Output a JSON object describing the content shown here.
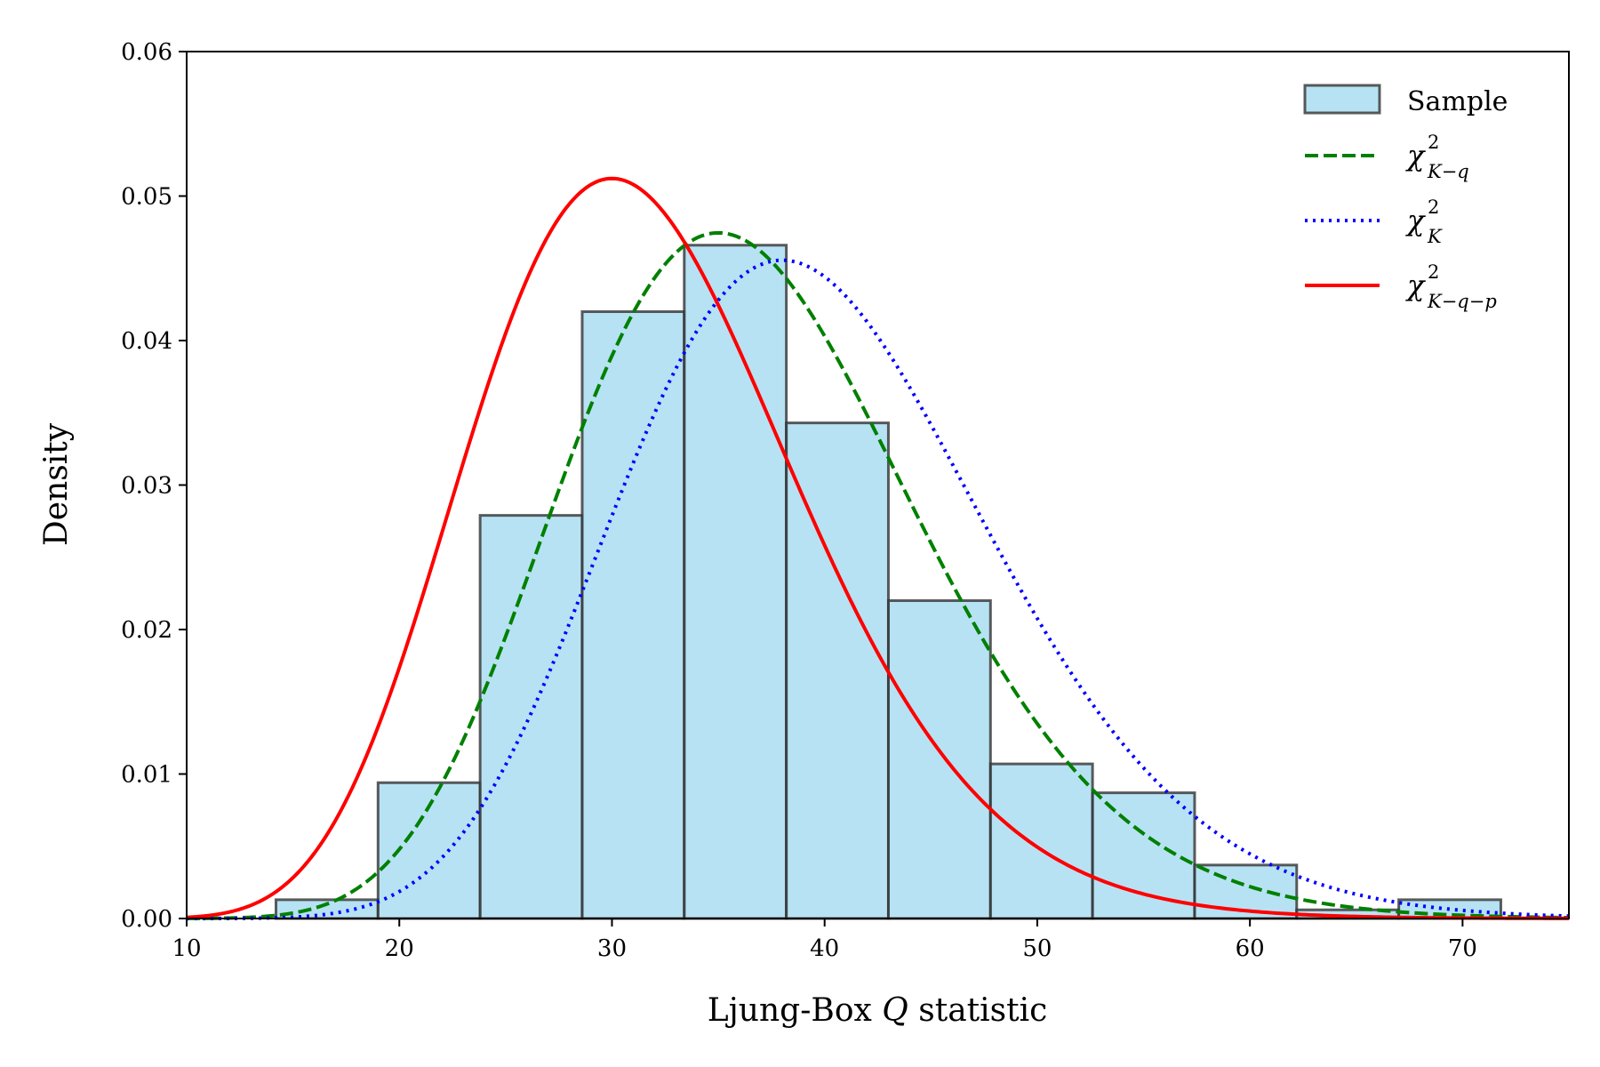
{
  "chart_data": {
    "type": "histogram",
    "xlabel_prefix": "Ljung-Box",
    "xlabel_var": "Q",
    "xlabel_suffix": "statistic",
    "ylabel": "Density",
    "xlim": [
      10,
      75
    ],
    "ylim": [
      0,
      0.06
    ],
    "xticks": [
      10,
      20,
      30,
      40,
      50,
      60,
      70
    ],
    "yticks": [
      0.0,
      0.01,
      0.02,
      0.03,
      0.04,
      0.05,
      0.06
    ],
    "ytick_labels": [
      "0.00",
      "0.01",
      "0.02",
      "0.03",
      "0.04",
      "0.05",
      "0.06"
    ],
    "legend_position": "top-right",
    "histogram": {
      "name": "Sample",
      "bin_edges": [
        14.2,
        19.0,
        23.8,
        28.6,
        33.4,
        38.2,
        43.0,
        47.8,
        52.6,
        57.4,
        62.2,
        67.0,
        71.8
      ],
      "density": [
        0.0013,
        0.0094,
        0.0279,
        0.042,
        0.0466,
        0.0343,
        0.022,
        0.0107,
        0.0087,
        0.0037,
        0.0006,
        0.0013
      ],
      "fill_color": "#87ceeb",
      "edge_color": "#333333"
    },
    "series": [
      {
        "name": "chi2_K-q",
        "label_base": "χ",
        "label_sup": "2",
        "label_sub": "K−q",
        "df": 37,
        "color": "#008000",
        "style": "dashed"
      },
      {
        "name": "chi2_K",
        "label_base": "χ",
        "label_sup": "2",
        "label_sub": "K",
        "df": 40,
        "color": "#0000ff",
        "style": "dotted"
      },
      {
        "name": "chi2_K-q-p",
        "label_base": "χ",
        "label_sup": "2",
        "label_sub": "K−q−p",
        "df": 32,
        "color": "#ff0000",
        "style": "solid"
      }
    ]
  }
}
